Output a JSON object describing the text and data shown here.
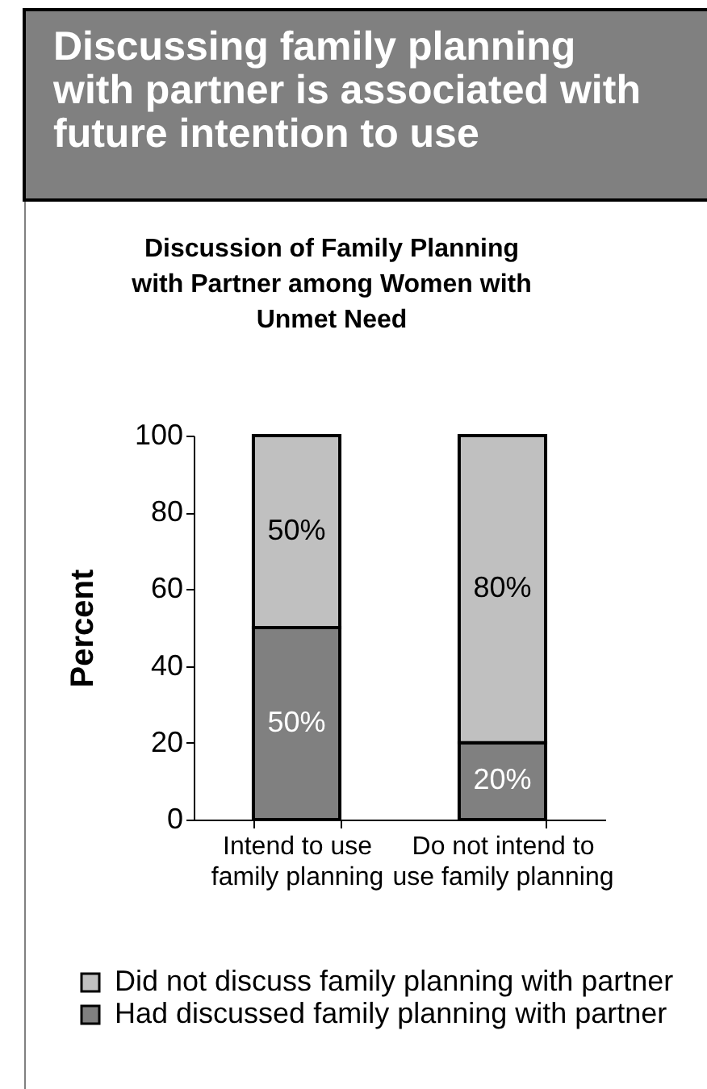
{
  "chart_data": {
    "type": "bar",
    "title": "Discussing family planning with partner is associated with future intention to use",
    "subtitle": "Discussion of Family Planning with Partner among Women with Unmet Need",
    "ylabel": "Percent",
    "categories": [
      "Intend to use family planning",
      "Do not intend to use family planning"
    ],
    "stacked": true,
    "series": [
      {
        "name": "Had discussed family planning with partner",
        "color": "#808080",
        "values": [
          50,
          20
        ],
        "value_labels": [
          "50%",
          "20%"
        ]
      },
      {
        "name": "Did not discuss family planning with partner",
        "color": "#c0c0c0",
        "values": [
          50,
          80
        ],
        "value_labels": [
          "50%",
          "80%"
        ]
      }
    ],
    "ylim": [
      0,
      100
    ],
    "yticks": [
      0,
      20,
      40,
      60,
      80,
      100
    ],
    "legend": "bottom"
  }
}
